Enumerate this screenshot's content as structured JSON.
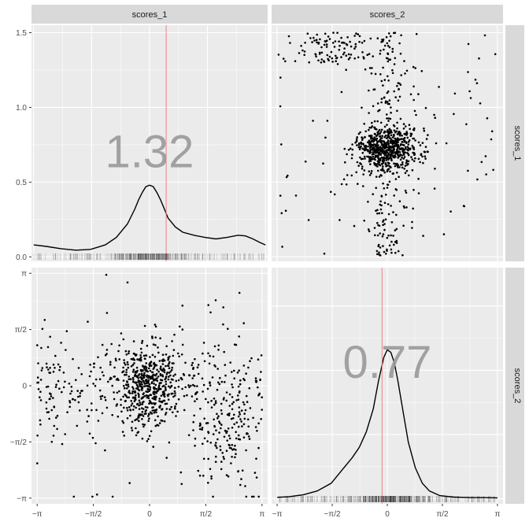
{
  "chart_data": [
    {
      "type": "line",
      "panel": "top-left",
      "strip_label": "scores_1",
      "title": "",
      "xlabel": "",
      "ylabel": "",
      "xlim": [
        -3.2,
        3.2
      ],
      "ylim": [
        -0.03,
        1.55
      ],
      "y_ticks": [
        0.0,
        0.5,
        1.0,
        1.5
      ],
      "y_tick_labels": [
        "0.0",
        "0.5",
        "1.0",
        "1.5"
      ],
      "grid": true,
      "annotation": "1.32",
      "annotation_position": {
        "x": 0.0,
        "y": 0.6
      },
      "vline_x": 0.45,
      "vline_color": "#f08080",
      "series": [
        {
          "x": [
            -3.14,
            -2.8,
            -2.4,
            -2.0,
            -1.6,
            -1.2,
            -0.9,
            -0.6,
            -0.4,
            -0.3,
            -0.2,
            -0.1,
            0.0,
            0.1,
            0.2,
            0.3,
            0.4,
            0.5,
            0.7,
            0.9,
            1.2,
            1.5,
            1.8,
            2.1,
            2.4,
            2.6,
            2.8,
            3.0,
            3.14
          ],
          "y": [
            0.08,
            0.07,
            0.055,
            0.045,
            0.05,
            0.08,
            0.13,
            0.22,
            0.32,
            0.38,
            0.43,
            0.47,
            0.48,
            0.47,
            0.43,
            0.38,
            0.32,
            0.26,
            0.2,
            0.165,
            0.145,
            0.13,
            0.12,
            0.13,
            0.145,
            0.14,
            0.12,
            0.095,
            0.08
          ]
        }
      ],
      "rug_seed": 7,
      "rug_count": 400
    },
    {
      "type": "scatter",
      "panel": "top-right",
      "strip_label": "scores_2",
      "row_strip_label": "scores_1",
      "title": "",
      "xlabel": "",
      "ylabel": "",
      "xlim": [
        -3.3,
        3.3
      ],
      "ylim": [
        -0.03,
        1.55
      ],
      "grid": true,
      "point_seed": 11,
      "point_count": 1000
    },
    {
      "type": "scatter",
      "panel": "bottom-left",
      "title": "",
      "xlabel": "",
      "ylabel": "",
      "xlim": [
        -3.3,
        3.3
      ],
      "ylim": [
        -3.3,
        3.3
      ],
      "x_ticks": [
        -3.14159,
        -1.5708,
        0,
        1.5708,
        3.14159
      ],
      "x_tick_labels": [
        "−π",
        "−π/2",
        "0",
        "π/2",
        "π"
      ],
      "y_ticks": [
        -3.14159,
        -1.5708,
        0,
        1.5708,
        3.14159
      ],
      "y_tick_labels": [
        "−π",
        "−π/2",
        "0",
        "π/2",
        "π"
      ],
      "grid": true,
      "point_seed": 23,
      "point_count": 1000
    },
    {
      "type": "line",
      "panel": "bottom-right",
      "row_strip_label": "scores_2",
      "title": "",
      "xlabel": "",
      "ylabel": "",
      "xlim": [
        -3.3,
        3.3
      ],
      "ylim": [
        -0.02,
        0.9
      ],
      "x_ticks": [
        -3.14159,
        -1.5708,
        0,
        1.5708,
        3.14159
      ],
      "x_tick_labels": [
        "−π",
        "−π/2",
        "0",
        "π/2",
        "π"
      ],
      "grid": true,
      "annotation": "0.77",
      "annotation_position": {
        "x": 0.0,
        "y": 0.47
      },
      "vline_x": -0.15,
      "vline_color": "#f08080",
      "series": [
        {
          "x": [
            -3.14,
            -2.8,
            -2.4,
            -2.0,
            -1.6,
            -1.3,
            -1.0,
            -0.8,
            -0.6,
            -0.4,
            -0.25,
            -0.1,
            0.0,
            0.1,
            0.2,
            0.3,
            0.45,
            0.6,
            0.8,
            1.0,
            1.2,
            1.5,
            1.9,
            2.4,
            2.8,
            3.14
          ],
          "y": [
            0.005,
            0.008,
            0.015,
            0.03,
            0.06,
            0.11,
            0.16,
            0.2,
            0.26,
            0.35,
            0.46,
            0.55,
            0.58,
            0.57,
            0.53,
            0.46,
            0.34,
            0.22,
            0.12,
            0.06,
            0.03,
            0.012,
            0.006,
            0.004,
            0.004,
            0.003
          ]
        }
      ],
      "rug_seed": 31,
      "rug_count": 500
    }
  ],
  "colors": {
    "panel_bg": "#ebebeb",
    "grid_major": "#ffffff",
    "strip_bg": "#d9d9d9",
    "line": "#000000",
    "vline": "#f08080",
    "annotation": "#999999"
  }
}
